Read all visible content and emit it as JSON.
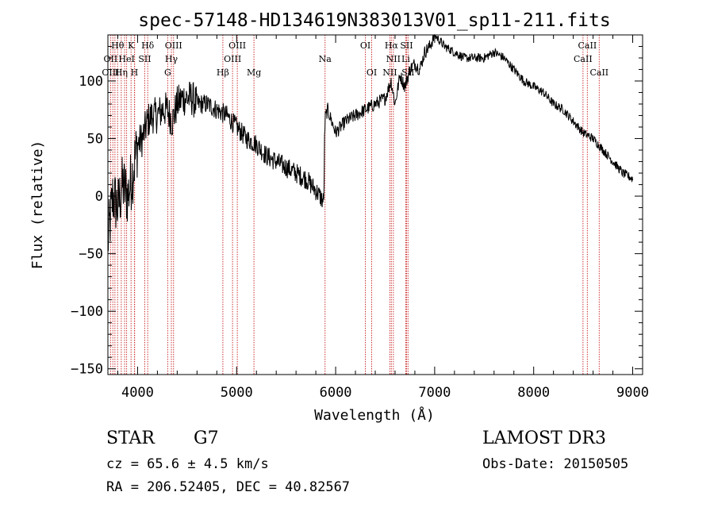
{
  "chart_data": {
    "type": "line",
    "title": "spec-57148-HD134619N383013V01_sp11-211.fits",
    "xlabel": "Wavelength (Å)",
    "ylabel": "Flux (relative)",
    "xlim": [
      3700,
      9100
    ],
    "ylim": [
      -155,
      140
    ],
    "x_ticks": [
      4000,
      5000,
      6000,
      7000,
      8000,
      9000
    ],
    "x_tick_labels": [
      "4000",
      "5000",
      "6000",
      "7000",
      "8000",
      "9000"
    ],
    "y_ticks": [
      -150,
      -100,
      -50,
      0,
      50,
      100
    ],
    "y_tick_labels": [
      "−150",
      "−100",
      "−50",
      "0",
      "50",
      "100"
    ],
    "grid": false,
    "series": [
      {
        "name": "spectrum",
        "x": [
          3700,
          3750,
          3800,
          3850,
          3900,
          3950,
          4000,
          4050,
          4100,
          4150,
          4200,
          4250,
          4300,
          4350,
          4400,
          4450,
          4500,
          4550,
          4600,
          4700,
          4800,
          4900,
          5000,
          5100,
          5200,
          5300,
          5400,
          5500,
          5600,
          5700,
          5800,
          5880,
          5890,
          5900,
          5920,
          6000,
          6100,
          6200,
          6300,
          6400,
          6500,
          6560,
          6600,
          6650,
          6700,
          6750,
          6800,
          6850,
          6900,
          6950,
          7000,
          7050,
          7100,
          7200,
          7300,
          7400,
          7500,
          7600,
          7700,
          7800,
          7900,
          8000,
          8100,
          8200,
          8300,
          8400,
          8500,
          8600,
          8700,
          8800,
          8900,
          9000
        ],
        "values": [
          -40,
          0,
          -10,
          10,
          0,
          20,
          45,
          50,
          65,
          70,
          70,
          75,
          75,
          65,
          80,
          85,
          85,
          85,
          80,
          80,
          75,
          70,
          60,
          50,
          45,
          35,
          30,
          25,
          20,
          15,
          5,
          -5,
          60,
          70,
          75,
          55,
          65,
          70,
          75,
          80,
          85,
          100,
          80,
          105,
          95,
          110,
          115,
          110,
          125,
          130,
          140,
          135,
          130,
          125,
          120,
          120,
          120,
          125,
          120,
          110,
          100,
          95,
          90,
          80,
          75,
          65,
          55,
          50,
          40,
          30,
          20,
          15
        ]
      }
    ],
    "lines": {
      "color": "#cc3333",
      "wavelengths": [
        3727,
        3750,
        3771,
        3798,
        3835,
        3869,
        3889,
        3934,
        3968,
        3970,
        4072,
        4102,
        4304,
        4341,
        4363,
        4861,
        4959,
        5007,
        5175,
        5893,
        6300,
        6364,
        6548,
        6563,
        6583,
        6708,
        6716,
        6731,
        8498,
        8542,
        8662
      ],
      "labels": [
        {
          "text": "Hθ",
          "wavelength": 3798,
          "row": 1
        },
        {
          "text": "K",
          "wavelength": 3934,
          "row": 1
        },
        {
          "text": "Hδ",
          "wavelength": 4102,
          "row": 1
        },
        {
          "text": "OIII",
          "wavelength": 4363,
          "row": 1
        },
        {
          "text": "OIII",
          "wavelength": 5007,
          "row": 1
        },
        {
          "text": "OI",
          "wavelength": 6300,
          "row": 1
        },
        {
          "text": "Hα",
          "wavelength": 6563,
          "row": 1
        },
        {
          "text": "SII",
          "wavelength": 6716,
          "row": 1
        },
        {
          "text": "CaII",
          "wavelength": 8542,
          "row": 1
        },
        {
          "text": "OII",
          "wavelength": 3727,
          "row": 2
        },
        {
          "text": "HeI",
          "wavelength": 3889,
          "row": 2
        },
        {
          "text": "SII",
          "wavelength": 4072,
          "row": 2
        },
        {
          "text": "Hγ",
          "wavelength": 4341,
          "row": 2
        },
        {
          "text": "OIII",
          "wavelength": 4959,
          "row": 2
        },
        {
          "text": "Na",
          "wavelength": 5893,
          "row": 2
        },
        {
          "text": "NII",
          "wavelength": 6583,
          "row": 2
        },
        {
          "text": "Li",
          "wavelength": 6708,
          "row": 2
        },
        {
          "text": "CaII",
          "wavelength": 8498,
          "row": 2
        },
        {
          "text": "OIII",
          "wavelength": 3727,
          "row": 3
        },
        {
          "text": "Hη",
          "wavelength": 3835,
          "row": 3
        },
        {
          "text": "H",
          "wavelength": 3968,
          "row": 3
        },
        {
          "text": "G",
          "wavelength": 4304,
          "row": 3
        },
        {
          "text": "Hβ",
          "wavelength": 4861,
          "row": 3
        },
        {
          "text": "Mg",
          "wavelength": 5175,
          "row": 3
        },
        {
          "text": "OI",
          "wavelength": 6364,
          "row": 3
        },
        {
          "text": "NII",
          "wavelength": 6548,
          "row": 3
        },
        {
          "text": "SII",
          "wavelength": 6731,
          "row": 3
        },
        {
          "text": "CaII",
          "wavelength": 8662,
          "row": 3
        }
      ]
    }
  },
  "info": {
    "object_class": "STAR",
    "subclass": "G7",
    "survey": "LAMOST DR3",
    "redshift": "cz = 65.6 ± 4.5 km/s",
    "obs_date": "Obs-Date: 20150505",
    "coords": "RA = 206.52405, DEC =  40.82567"
  }
}
